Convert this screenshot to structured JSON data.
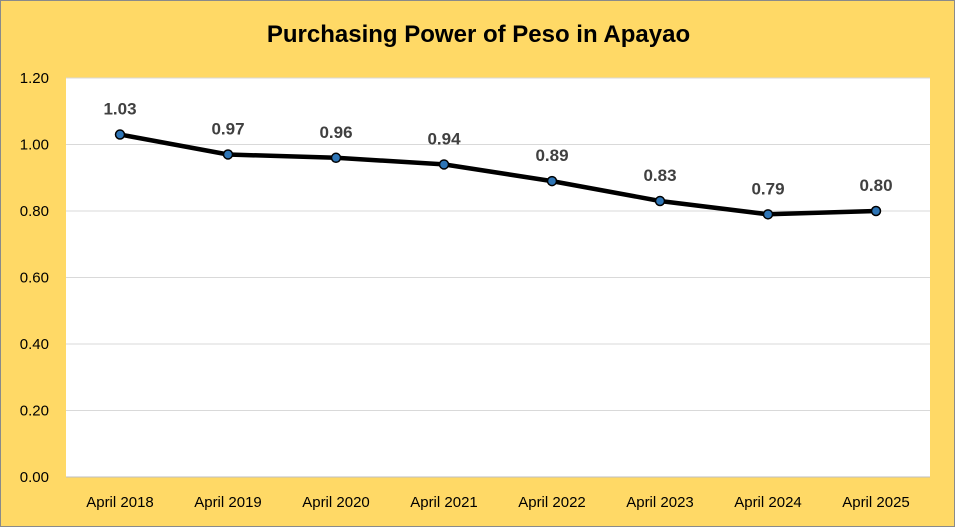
{
  "chart_data": {
    "type": "line",
    "title": "Purchasing Power of Peso in Apayao",
    "categories": [
      "April 2018",
      "April 2019",
      "April 2020",
      "April 2021",
      "April 2022",
      "April 2023",
      "April 2024",
      "April 2025"
    ],
    "series": [
      {
        "values": [
          1.03,
          0.97,
          0.96,
          0.94,
          0.89,
          0.83,
          0.79,
          0.8
        ]
      }
    ],
    "data_labels": [
      "1.03",
      "0.97",
      "0.96",
      "0.94",
      "0.89",
      "0.83",
      "0.79",
      "0.80"
    ],
    "yticks": [
      "0.00",
      "0.20",
      "0.40",
      "0.60",
      "0.80",
      "1.00",
      "1.20"
    ],
    "ylim": [
      0,
      1.2
    ],
    "grid": true,
    "legend": "none",
    "colors": {
      "background": "#ffd966",
      "plot_area": "#ffffff",
      "line": "#000000",
      "marker_fill": "#2e75b6",
      "gridline": "#d9d9d9",
      "data_label": "#404040"
    }
  }
}
